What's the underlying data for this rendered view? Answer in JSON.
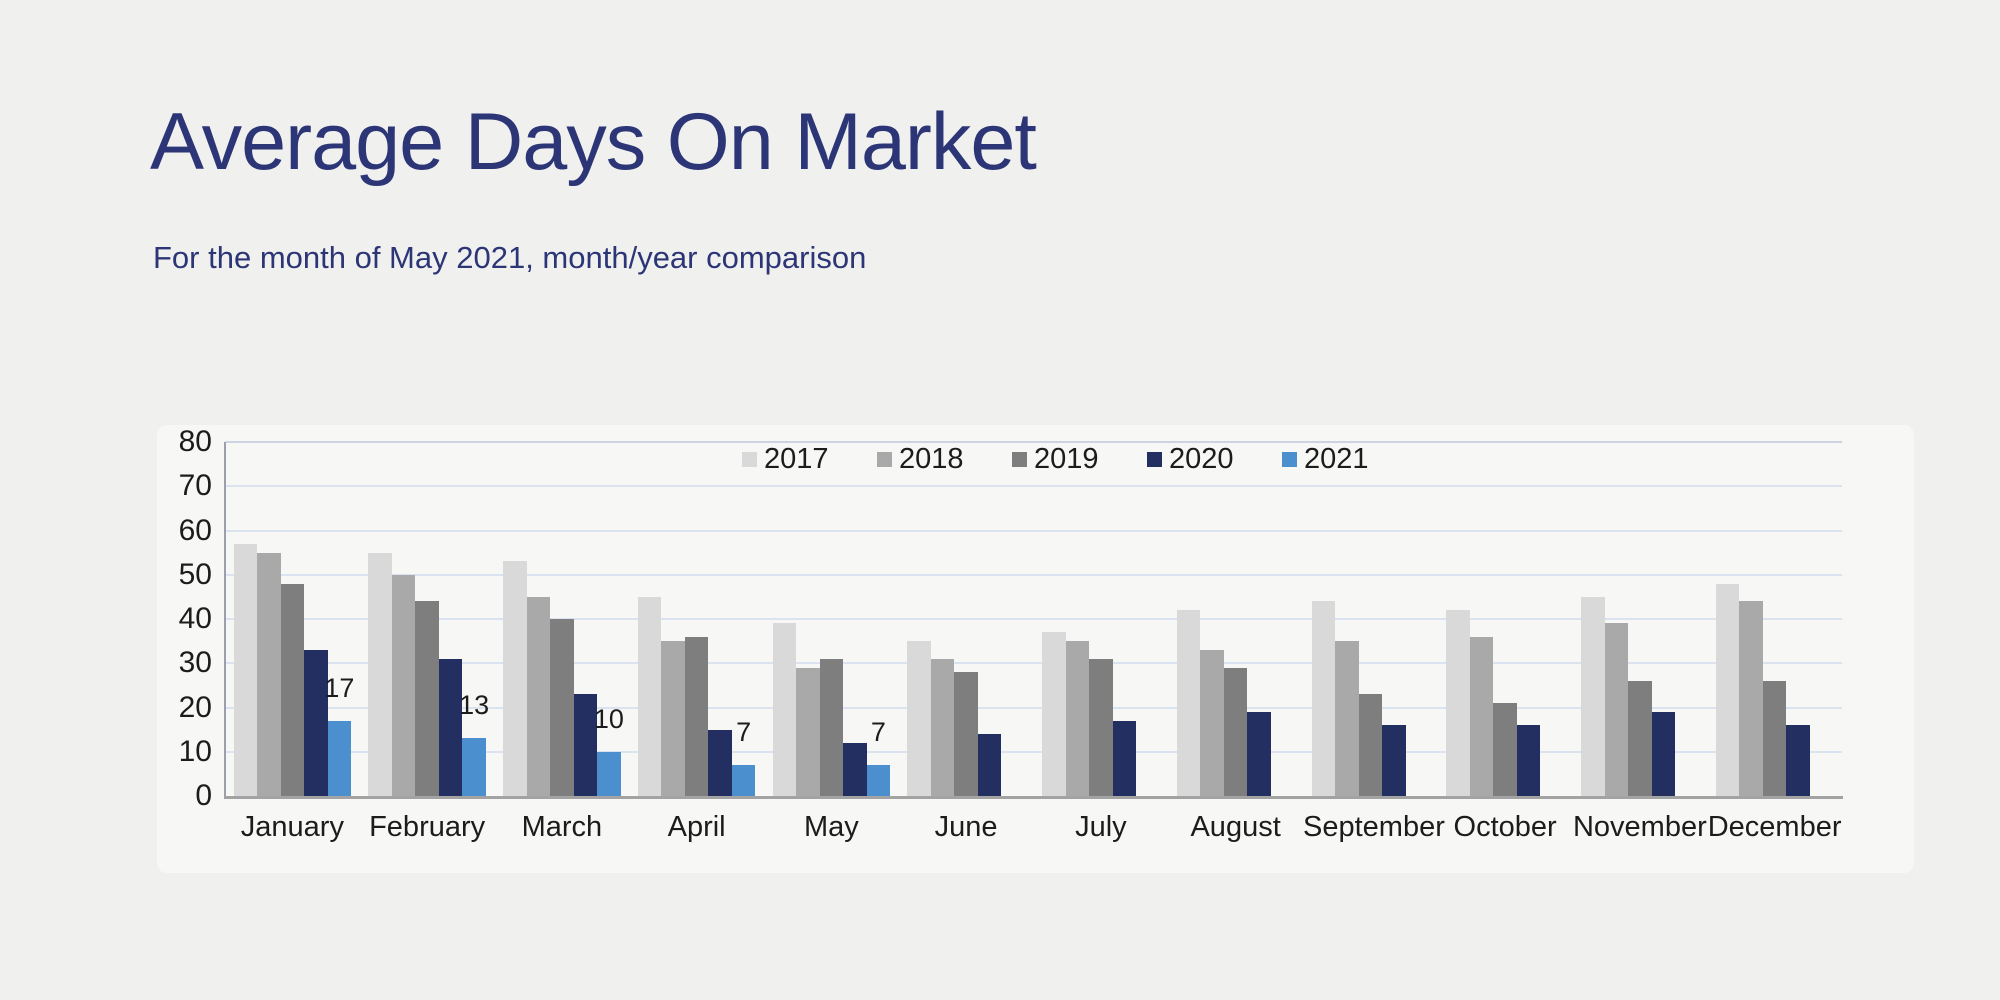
{
  "page": {
    "background": "#f0f0ef",
    "card_background": "#f7f7f6"
  },
  "header": {
    "title": "Average Days On Market",
    "subtitle": "For the month of May 2021, month/year comparison",
    "text_color": "#2c3576"
  },
  "chart_data": {
    "type": "bar",
    "title": "Average Days On Market",
    "subtitle": "For the month of May 2021, month/year comparison",
    "categories": [
      "January",
      "February",
      "March",
      "April",
      "May",
      "June",
      "July",
      "August",
      "September",
      "October",
      "November",
      "December"
    ],
    "series": [
      {
        "name": "2017",
        "color": "#d9d9d9",
        "values": [
          57,
          55,
          53,
          45,
          39,
          35,
          37,
          42,
          44,
          42,
          45,
          48
        ]
      },
      {
        "name": "2018",
        "color": "#a9a9a9",
        "values": [
          55,
          50,
          45,
          35,
          29,
          31,
          35,
          33,
          35,
          36,
          39,
          44
        ]
      },
      {
        "name": "2019",
        "color": "#7e7e7e",
        "values": [
          48,
          44,
          40,
          36,
          31,
          28,
          31,
          29,
          23,
          21,
          26,
          26
        ]
      },
      {
        "name": "2020",
        "color": "#232f60",
        "values": [
          33,
          31,
          23,
          15,
          12,
          14,
          17,
          19,
          16,
          16,
          19,
          16
        ]
      },
      {
        "name": "2021",
        "color": "#4b8fce",
        "values": [
          17,
          13,
          10,
          7,
          7,
          null,
          null,
          null,
          null,
          null,
          null,
          null
        ],
        "data_labels": true
      }
    ],
    "data_label_values": [
      "17",
      "13",
      "10",
      "7",
      "7"
    ],
    "xlabel": "",
    "ylabel": "",
    "ylim": [
      0,
      80
    ],
    "yticks": [
      0,
      10,
      20,
      30,
      40,
      50,
      60,
      70,
      80
    ],
    "grid": true,
    "legend_position": "top-center",
    "legend_entries": [
      "2017",
      "2018",
      "2019",
      "2020",
      "2021"
    ],
    "axis_text_color": "#1c1c1c",
    "gridline_color": "#dbe2f0"
  }
}
